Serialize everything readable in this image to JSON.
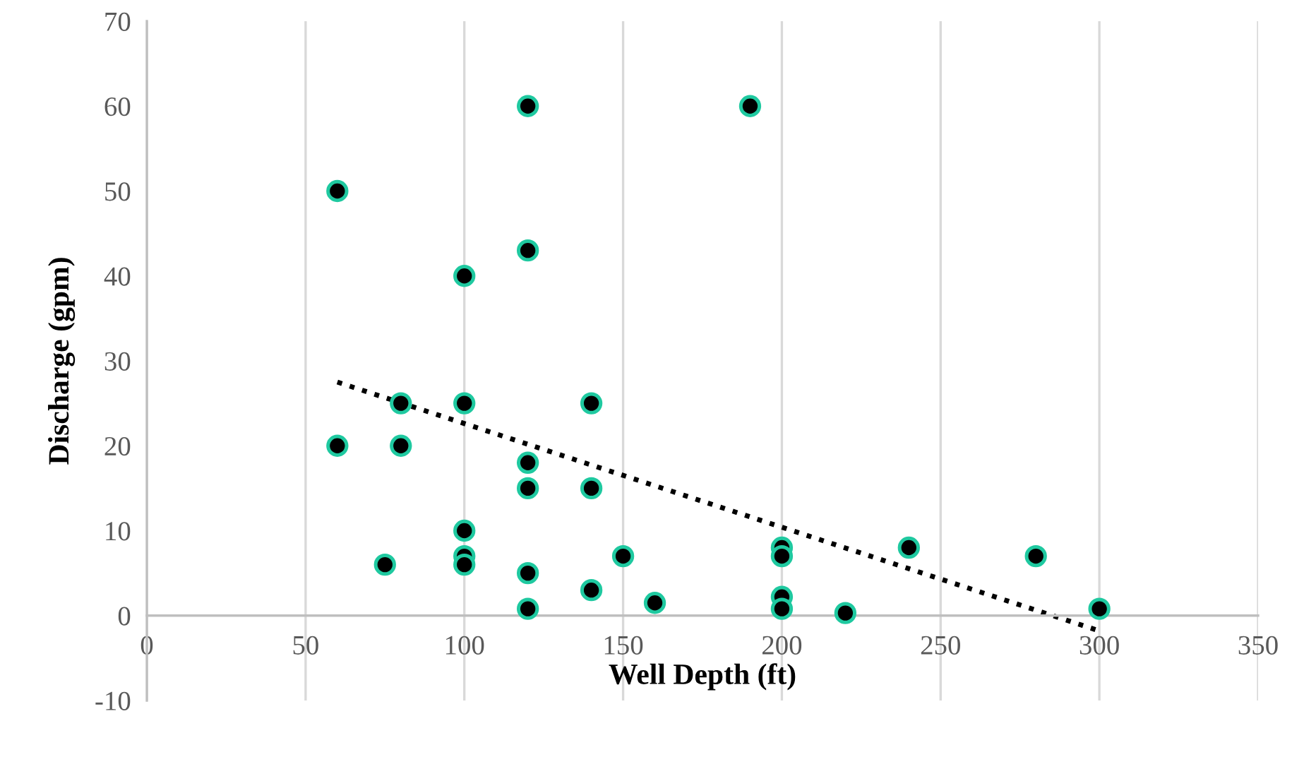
{
  "chart_data": {
    "type": "scatter",
    "xlabel": "Well Depth (ft)",
    "ylabel": "Discharge (gpm)",
    "xlim": [
      0,
      350
    ],
    "xticks": [
      0,
      50,
      100,
      150,
      200,
      250,
      300,
      350
    ],
    "ylim": [
      -10,
      70
    ],
    "yticks": [
      -10,
      0,
      10,
      20,
      30,
      40,
      50,
      60,
      70
    ],
    "grid": "x",
    "marker": "circle",
    "series": [
      {
        "color": "#000000",
        "x": [
          60,
          60,
          75,
          80,
          80,
          100,
          100,
          100,
          100,
          100,
          120,
          120,
          120,
          120,
          120,
          120,
          140,
          140,
          140,
          150,
          160,
          190,
          200,
          200,
          200,
          200,
          220,
          240,
          280,
          300
        ],
        "values": [
          50,
          20,
          6,
          25,
          20,
          40,
          25,
          10,
          7,
          6,
          60,
          43,
          18,
          15,
          5,
          0.8,
          25,
          15,
          3,
          7,
          1.5,
          60,
          8,
          7,
          2.2,
          0.8,
          0.3,
          8,
          7,
          0.8
        ]
      },
      {
        "type": "line",
        "color": "#000000",
        "line_style": "dotted",
        "marker": "none",
        "x": [
          60,
          300
        ],
        "values": [
          27.5,
          -1.8
        ]
      }
    ]
  }
}
